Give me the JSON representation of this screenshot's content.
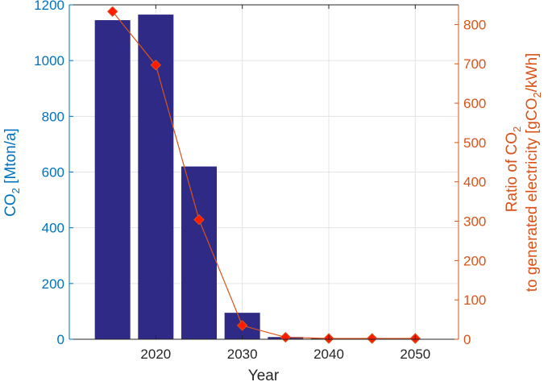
{
  "chart_data": {
    "type": "bar",
    "x": [
      2015,
      2020,
      2025,
      2030,
      2035,
      2040,
      2045,
      2050
    ],
    "xlabel": "Year",
    "xticks": [
      2020,
      2030,
      2040,
      2050
    ],
    "xlim": [
      2010,
      2055
    ],
    "series": [
      {
        "kind": "bar",
        "axis": "left",
        "color": "#2e2a86",
        "values": [
          1145,
          1165,
          620,
          95,
          8,
          3,
          2,
          1
        ]
      },
      {
        "kind": "line",
        "axis": "right",
        "color": "#d95319",
        "marker": "diamond",
        "marker_fill": "#ff1a00",
        "values": [
          833,
          697,
          304,
          35,
          5,
          2,
          2,
          2
        ]
      }
    ],
    "y_left": {
      "label_pre": "CO",
      "label_sub": "2",
      "label_post": " [Mton/a]",
      "lim": [
        0,
        1200
      ],
      "ticks": [
        0,
        200,
        400,
        600,
        800,
        1000,
        1200
      ],
      "color": "#0072bd"
    },
    "y_right": {
      "label_line1_pre": "Ratio of CO",
      "label_line1_sub": "2",
      "label_line2_pre": "to generated electricity [gCO",
      "label_line2_sub": "2",
      "label_line2_post": "/kWh]",
      "lim": [
        0,
        850
      ],
      "ticks": [
        0,
        100,
        200,
        300,
        400,
        500,
        600,
        700,
        800
      ],
      "color": "#d95319"
    },
    "grid": true
  }
}
